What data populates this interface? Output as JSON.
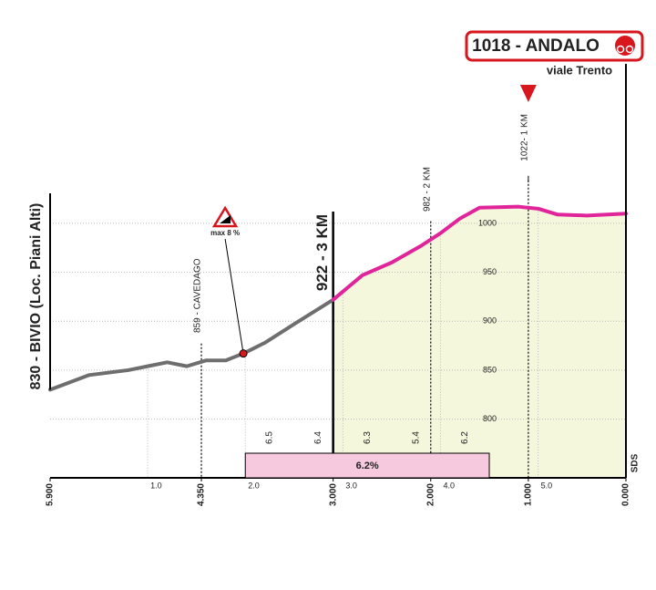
{
  "chart_data": {
    "type": "profile",
    "title": "1018 - ANDALO",
    "subtitle": "viale Trento",
    "start_label": "830 - BIVIO (Loc. Piani Alti)",
    "credit": "SDS",
    "x": [
      0,
      0.4,
      0.8,
      1.0,
      1.2,
      1.4,
      1.6,
      1.8,
      1.98,
      2.2,
      2.5,
      2.9,
      3.2,
      3.5,
      3.8,
      4.0,
      4.2,
      4.4,
      4.8,
      5.0,
      5.2,
      5.5,
      5.9
    ],
    "series": [
      {
        "color": "#6e6e6e",
        "values": [
          830,
          845,
          850,
          854,
          858,
          854,
          860,
          860,
          867,
          878,
          897,
          922,
          null,
          null,
          null,
          null,
          null,
          null,
          null,
          null,
          null,
          null,
          null
        ]
      },
      {
        "color": "#e0259b",
        "fill": "#f4f7dc",
        "values": [
          null,
          null,
          null,
          null,
          null,
          null,
          null,
          null,
          null,
          null,
          null,
          922,
          947,
          960,
          977,
          990,
          1005,
          1016,
          1017,
          1015,
          1009,
          1008,
          1010
        ]
      }
    ],
    "xlim": [
      0,
      5.9
    ],
    "xticks": [
      {
        "value": 1,
        "label": "1.0"
      },
      {
        "value": 2,
        "label": "2.0"
      },
      {
        "value": 3,
        "label": "3.0"
      },
      {
        "value": 4,
        "label": "4.0"
      },
      {
        "value": 5,
        "label": "5.0"
      }
    ],
    "x2lim": [
      5.9,
      0
    ],
    "x2ticks": [
      {
        "value": 5.9,
        "label": "5.900"
      },
      {
        "value": 4.35,
        "label": "4.350"
      },
      {
        "value": 3,
        "label": "3.000"
      },
      {
        "value": 2,
        "label": "2.000"
      },
      {
        "value": 1,
        "label": "1.000"
      },
      {
        "value": 0,
        "label": "0.000"
      }
    ],
    "ylim": [
      740,
      1040
    ],
    "yticks": [
      800,
      850,
      900,
      950,
      1000
    ],
    "grid": true,
    "markers": [
      {
        "label": "859 - CAVEDAGO",
        "x": 1.55
      },
      {
        "label": "922 - 3 KM",
        "x": 2.9
      },
      {
        "label": "982 - 2 KM",
        "x": 3.9
      },
      {
        "label": "1022- 1 KM",
        "x": 4.9
      }
    ],
    "max_gradient": {
      "label": "max 8 %",
      "x": 1.98
    },
    "gradients": {
      "x": [
        2.25,
        2.75,
        3.25,
        3.75,
        4.25
      ],
      "values": [
        6.5,
        6.4,
        6.3,
        5.4,
        6.2
      ]
    },
    "average_gradient": {
      "value": 6.2,
      "label": "6.2%",
      "x": [
        2.0,
        4.5
      ]
    }
  }
}
